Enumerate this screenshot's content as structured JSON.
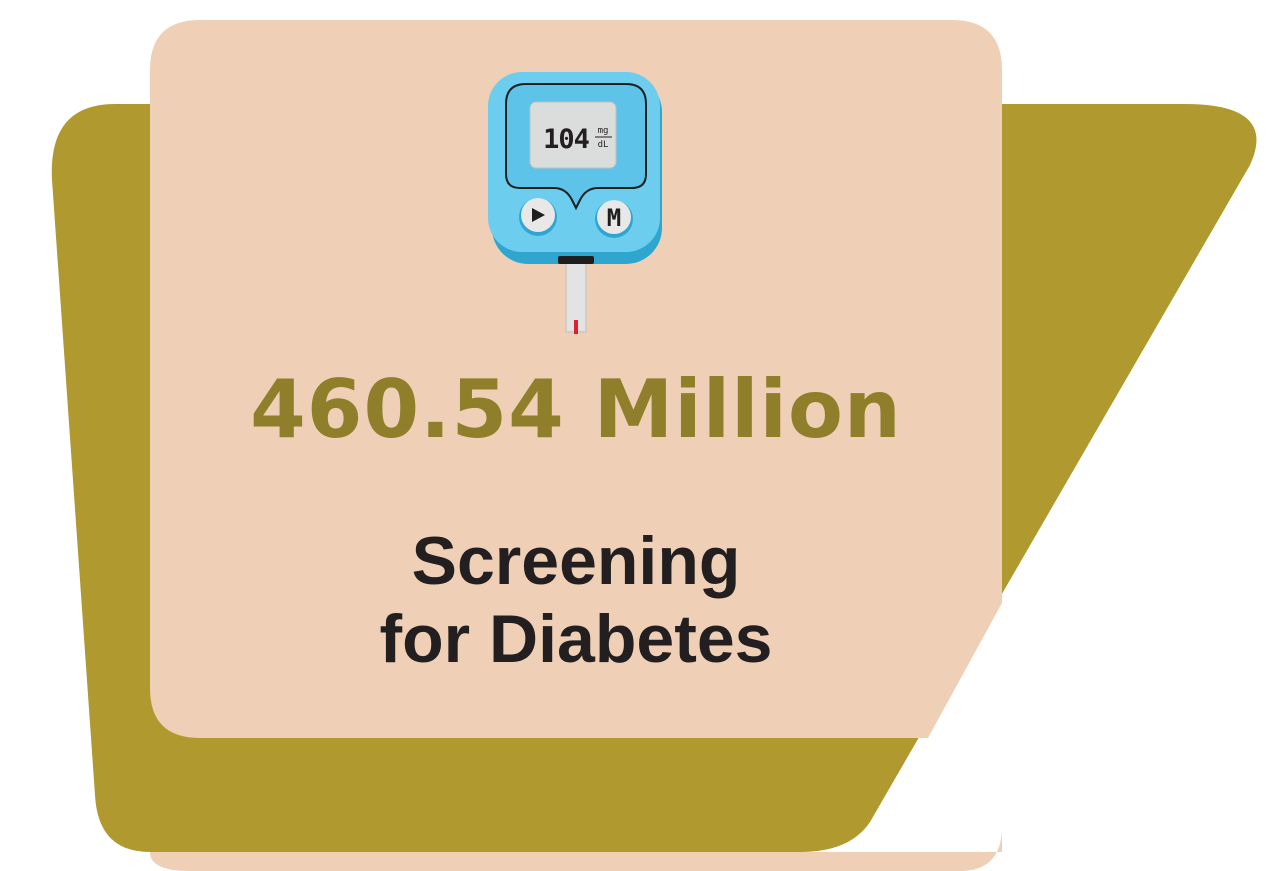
{
  "colors": {
    "olive_shape": "#b09a30",
    "card": "#efd0b6",
    "headline": "#8f7e2a",
    "subtitle": "#231f20",
    "meter_body": "#6ccdef",
    "meter_edge": "#2fa6cf",
    "meter_screen": "#dbdcdc",
    "strip": "#e3e3e3",
    "blood": "#e0202f"
  },
  "icons": {
    "meter": "glucose-meter-icon",
    "play": "play-icon",
    "menu": "m-menu-icon"
  },
  "meter": {
    "reading": "104",
    "unit_top": "mg",
    "unit_bottom": "dL",
    "menu_button_label": "M"
  },
  "headline": "460.54 Million",
  "subtitle": {
    "line1": "Screening",
    "line2": "for Diabetes"
  }
}
